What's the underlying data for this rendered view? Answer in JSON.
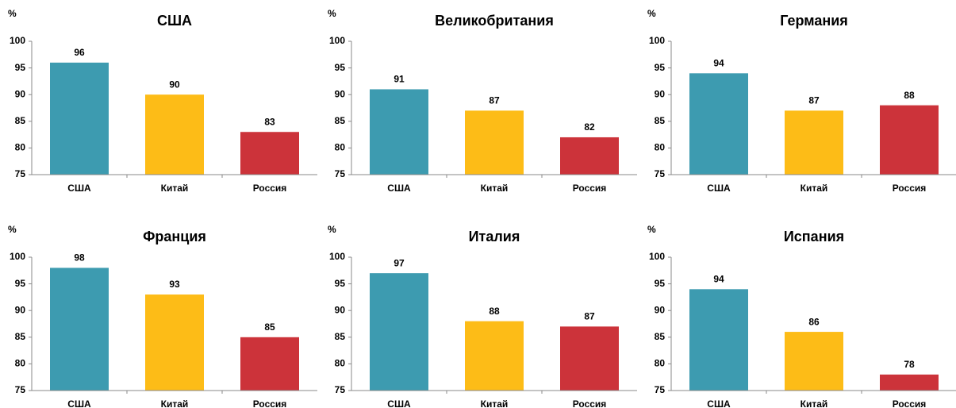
{
  "chart_data": [
    {
      "type": "bar",
      "title": "США",
      "ylabel": "%",
      "categories": [
        "США",
        "Китай",
        "Россия"
      ],
      "values": [
        96,
        90,
        83
      ],
      "colors": [
        "#3d9bb0",
        "#fdbc17",
        "#cc333a"
      ],
      "ylim": [
        75,
        100
      ],
      "yticks": [
        75,
        80,
        85,
        90,
        95,
        100
      ]
    },
    {
      "type": "bar",
      "title": "Великобритания",
      "ylabel": "%",
      "categories": [
        "США",
        "Китай",
        "Россия"
      ],
      "values": [
        91,
        87,
        82
      ],
      "colors": [
        "#3d9bb0",
        "#fdbc17",
        "#cc333a"
      ],
      "ylim": [
        75,
        100
      ],
      "yticks": [
        75,
        80,
        85,
        90,
        95,
        100
      ]
    },
    {
      "type": "bar",
      "title": "Германия",
      "ylabel": "%",
      "categories": [
        "США",
        "Китай",
        "Россия"
      ],
      "values": [
        94,
        87,
        88
      ],
      "colors": [
        "#3d9bb0",
        "#fdbc17",
        "#cc333a"
      ],
      "ylim": [
        75,
        100
      ],
      "yticks": [
        75,
        80,
        85,
        90,
        95,
        100
      ]
    },
    {
      "type": "bar",
      "title": "Франция",
      "ylabel": "%",
      "categories": [
        "США",
        "Китай",
        "Россия"
      ],
      "values": [
        98,
        93,
        85
      ],
      "colors": [
        "#3d9bb0",
        "#fdbc17",
        "#cc333a"
      ],
      "ylim": [
        75,
        100
      ],
      "yticks": [
        75,
        80,
        85,
        90,
        95,
        100
      ]
    },
    {
      "type": "bar",
      "title": "Италия",
      "ylabel": "%",
      "categories": [
        "США",
        "Китай",
        "Россия"
      ],
      "values": [
        97,
        88,
        87
      ],
      "colors": [
        "#3d9bb0",
        "#fdbc17",
        "#cc333a"
      ],
      "ylim": [
        75,
        100
      ],
      "yticks": [
        75,
        80,
        85,
        90,
        95,
        100
      ]
    },
    {
      "type": "bar",
      "title": "Испания",
      "ylabel": "%",
      "categories": [
        "США",
        "Китай",
        "Россия"
      ],
      "values": [
        94,
        86,
        78
      ],
      "colors": [
        "#3d9bb0",
        "#fdbc17",
        "#cc333a"
      ],
      "ylim": [
        75,
        100
      ],
      "yticks": [
        75,
        80,
        85,
        90,
        95,
        100
      ]
    }
  ]
}
